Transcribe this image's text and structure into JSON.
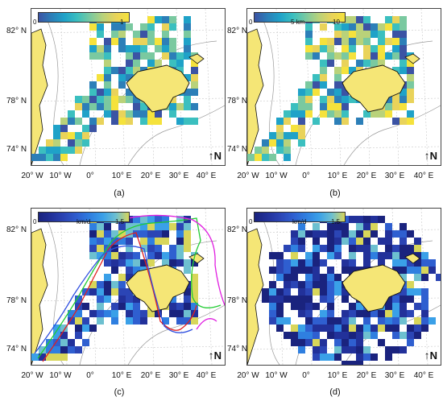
{
  "panels": [
    {
      "id": "a",
      "label": "(a)",
      "colorbar": {
        "min": "0",
        "max": "1",
        "unit": ""
      },
      "palette": "yellow-blue",
      "has_contours": false
    },
    {
      "id": "b",
      "label": "(b)",
      "colorbar": {
        "min": "0",
        "max": "10",
        "unit": "5   km"
      },
      "palette": "yellow-blue",
      "has_contours": false
    },
    {
      "id": "c",
      "label": "(c)",
      "colorbar": {
        "min": "0",
        "max": "1.5",
        "unit": "km/d"
      },
      "palette": "blue-deep",
      "has_contours": true
    },
    {
      "id": "d",
      "label": "(d)",
      "colorbar": {
        "min": "0",
        "max": "1.5",
        "unit": "km/d"
      },
      "palette": "blue-deep",
      "has_contours": false
    }
  ],
  "y_ticks": [
    "82° N",
    "78° N",
    "74° N"
  ],
  "x_ticks": [
    "20° W",
    "10° W",
    "0°",
    "10° E",
    "20° E",
    "30° E",
    "40° E"
  ],
  "north_label": "N",
  "colors": {
    "land": "#f5e676",
    "coast": "#111111",
    "bathy": "#9a9a9a",
    "grid": "#c8c8c8",
    "contour_green": "#22cc33",
    "contour_magenta": "#e020e0",
    "contour_red": "#e02020",
    "contour_blue": "#3050e0"
  }
}
